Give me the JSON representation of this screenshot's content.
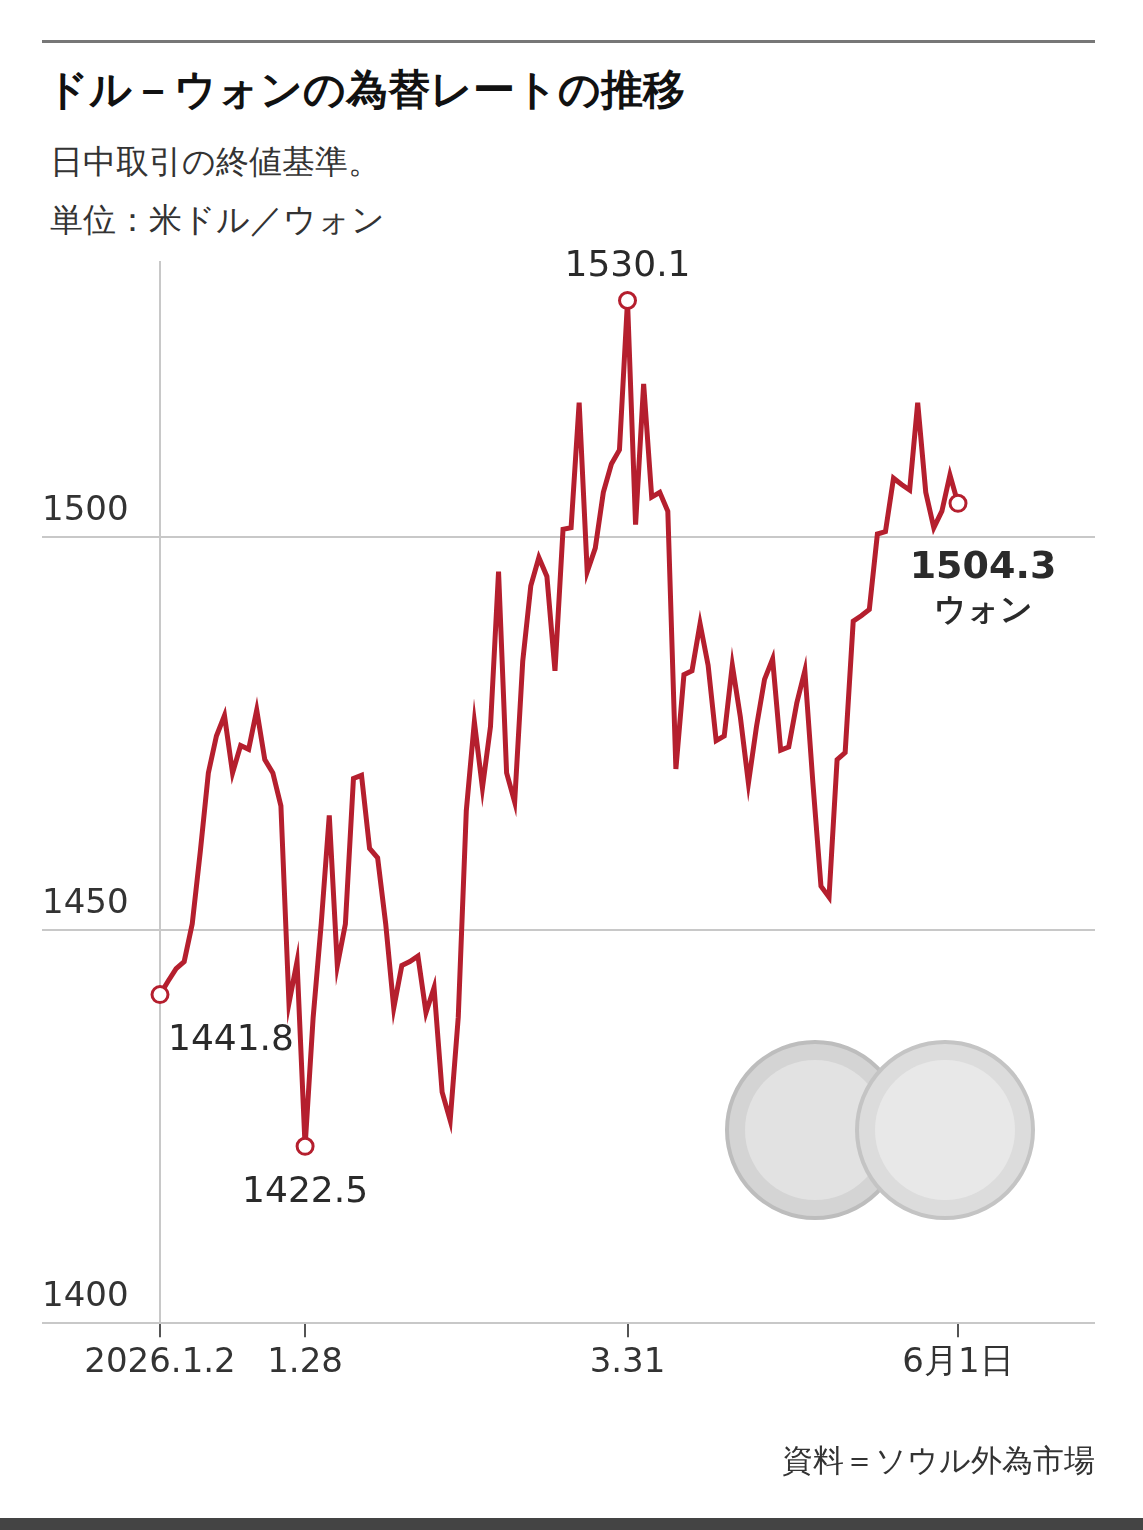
{
  "chart_data": {
    "type": "line",
    "title": "ドル－ウォンの為替レートの推移",
    "subtitle": [
      "日中取引の終値基準。",
      "単位：米ドル／ウォン"
    ],
    "source": "資料＝ソウル外為市場",
    "categories": [
      "2026.1.2",
      null,
      null,
      null,
      null,
      null,
      null,
      null,
      null,
      null,
      null,
      null,
      null,
      null,
      null,
      null,
      null,
      null,
      "1.28",
      null,
      null,
      null,
      null,
      null,
      null,
      null,
      null,
      null,
      null,
      null,
      null,
      null,
      null,
      null,
      null,
      null,
      null,
      null,
      null,
      null,
      null,
      null,
      null,
      null,
      null,
      null,
      null,
      null,
      null,
      null,
      null,
      null,
      null,
      null,
      null,
      null,
      null,
      null,
      "3.31",
      null,
      null,
      null,
      null,
      null,
      null,
      null,
      null,
      null,
      null,
      null,
      null,
      null,
      null,
      null,
      null,
      null,
      null,
      null,
      null,
      null,
      null,
      null,
      null,
      null,
      null,
      null,
      null,
      null,
      null,
      null,
      null,
      null,
      null,
      null,
      null,
      null,
      null,
      null,
      null,
      "6月1日"
    ],
    "values": [
      1441.8,
      1443.5,
      1445.1,
      1446.0,
      1450.8,
      1460.0,
      1470.0,
      1474.7,
      1477.3,
      1470.0,
      1473.5,
      1473.0,
      1478.0,
      1471.7,
      1470.0,
      1465.8,
      1440.7,
      1446.0,
      1422.5,
      1438.9,
      1450.8,
      1464.6,
      1445.5,
      1450.8,
      1469.3,
      1469.7,
      1460.4,
      1459.2,
      1450.8,
      1440.1,
      1445.5,
      1446.0,
      1446.7,
      1439.5,
      1442.7,
      1429.4,
      1425.8,
      1438.9,
      1465.2,
      1476.5,
      1468.1,
      1475.9,
      1495.6,
      1470.0,
      1466.3,
      1484.2,
      1493.8,
      1497.4,
      1495.0,
      1483.0,
      1501.0,
      1501.2,
      1517.1,
      1495.6,
      1498.6,
      1505.7,
      1509.3,
      1511.1,
      1530.1,
      1501.6,
      1519.5,
      1505.1,
      1505.7,
      1503.3,
      1470.5,
      1482.5,
      1483.0,
      1489.0,
      1483.7,
      1474.1,
      1474.7,
      1483.7,
      1477.1,
      1468.7,
      1475.9,
      1481.9,
      1484.5,
      1472.9,
      1473.3,
      1478.9,
      1483.0,
      1468.7,
      1455.6,
      1454.2,
      1471.7,
      1472.6,
      1489.3,
      1490.0,
      1490.8,
      1500.4,
      1500.7,
      1507.5,
      1506.7,
      1506.0,
      1517.1,
      1505.7,
      1501.2,
      1503.3,
      1507.9,
      1504.3
    ],
    "color": "#b51f2e",
    "ylim": [
      1400,
      1535
    ],
    "yticks": [
      1400,
      1450,
      1500
    ],
    "grid": true,
    "annotations": [
      {
        "x": "2026.1.2",
        "text": "1441.8"
      },
      {
        "x": "1.28",
        "text": "1422.5"
      },
      {
        "x": "3.31",
        "text": "1530.1"
      },
      {
        "x": "6月1日",
        "text": "1504.3",
        "unit": "ウォン"
      }
    ]
  }
}
